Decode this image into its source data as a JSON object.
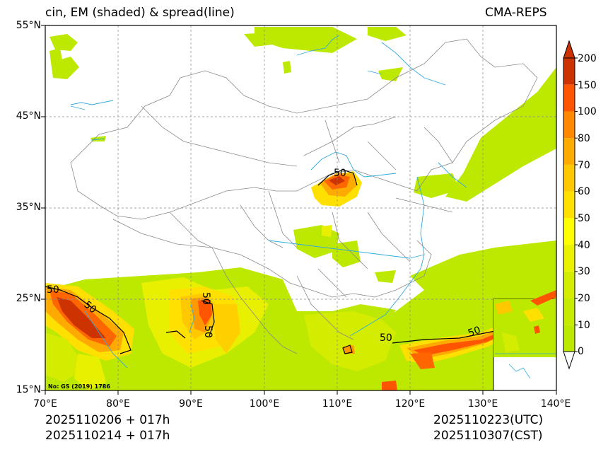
{
  "title": {
    "left": "cin, EM (shaded) & spread(line)",
    "right": "CMA-REPS"
  },
  "axes": {
    "lat_labels": [
      "55°N",
      "45°N",
      "35°N",
      "25°N",
      "15°N"
    ],
    "lon_labels": [
      "70°E",
      "80°E",
      "90°E",
      "100°E",
      "110°E",
      "120°E",
      "130°E",
      "140°E"
    ]
  },
  "colorbar": {
    "labels": [
      "200",
      "150",
      "100",
      "80",
      "70",
      "60",
      "50",
      "40",
      "30",
      "20",
      "10",
      "0"
    ],
    "colors": [
      "#cc3300",
      "#ff5500",
      "#ff8800",
      "#ffaa00",
      "#ffc800",
      "#ffe000",
      "#ffff00",
      "#eaf200",
      "#d4ec00",
      "#c6ea00",
      "#bde800"
    ]
  },
  "contour_labels": [
    "50",
    "50",
    "50",
    "50",
    "50",
    "50",
    "50"
  ],
  "map_note": "No: GS (2019) 1786",
  "footer": {
    "init_utc": "2025110206  +  017h",
    "init_cst": "2025110214  +  017h",
    "valid_utc": "2025110223(UTC)",
    "valid_cst": "2025110307(CST)"
  }
}
